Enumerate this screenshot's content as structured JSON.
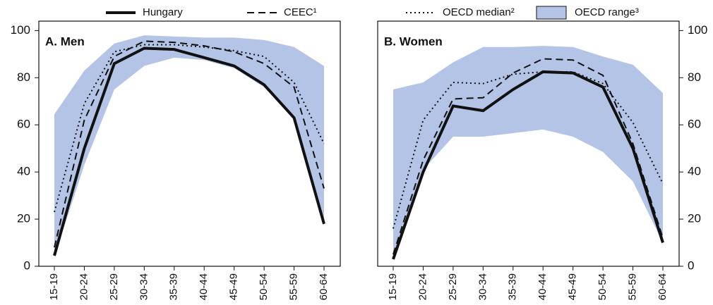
{
  "chart_data": [
    {
      "type": "line",
      "panel_label": "A. Men",
      "yaxis_side": "left",
      "categories": [
        "15-19",
        "20-24",
        "25-29",
        "30-34",
        "35-39",
        "40-44",
        "45-49",
        "50-54",
        "55-59",
        "60-64"
      ],
      "ylim": [
        0,
        104
      ],
      "yticks": [
        0,
        20,
        40,
        60,
        80,
        100
      ],
      "range": {
        "name": "OECD range³",
        "color": "#b3c4e6",
        "low": [
          4,
          43,
          75,
          85,
          88.5,
          87.5,
          84,
          76,
          62,
          17
        ],
        "high": [
          64.5,
          83,
          94.5,
          98,
          97.5,
          97,
          97,
          96,
          93,
          85
        ]
      },
      "series": [
        {
          "name": "Hungary",
          "color": "#111111",
          "dash": "solid",
          "values": [
            4.5,
            50,
            86,
            92.5,
            92,
            88.5,
            85,
            77,
            63,
            18
          ]
        },
        {
          "name": "CEEC¹",
          "color": "#111111",
          "dash": "dashed",
          "values": [
            8,
            62,
            89,
            95.5,
            95,
            93.5,
            91,
            86,
            76,
            33
          ]
        },
        {
          "name": "OECD median²",
          "color": "#111111",
          "dash": "dotted",
          "values": [
            23,
            69,
            91,
            94,
            94,
            93,
            91.5,
            89,
            78,
            52
          ]
        }
      ]
    },
    {
      "type": "line",
      "panel_label": "B. Women",
      "yaxis_side": "right",
      "categories": [
        "15-19",
        "20-24",
        "25-29",
        "30-34",
        "35-39",
        "40-44",
        "45-49",
        "50-54",
        "55-59",
        "60-64"
      ],
      "ylim": [
        0,
        104
      ],
      "yticks": [
        0,
        20,
        40,
        60,
        80,
        100
      ],
      "range": {
        "name": "OECD range³",
        "color": "#b3c4e6",
        "low": [
          3,
          41,
          55,
          55,
          56.5,
          58,
          55,
          48.5,
          36,
          10
        ],
        "high": [
          75,
          78,
          86.5,
          93,
          93,
          93.5,
          93,
          89,
          85.5,
          73.5
        ]
      },
      "series": [
        {
          "name": "Hungary",
          "color": "#111111",
          "dash": "solid",
          "values": [
            3,
            40,
            68,
            66,
            75,
            82.5,
            82,
            76,
            50,
            10
          ]
        },
        {
          "name": "CEEC¹",
          "color": "#111111",
          "dash": "dashed",
          "values": [
            5,
            45,
            71,
            71.5,
            82,
            88,
            87.5,
            81,
            52,
            12
          ]
        },
        {
          "name": "OECD median²",
          "color": "#111111",
          "dash": "dotted",
          "values": [
            16,
            62,
            78,
            77.5,
            81.5,
            82.5,
            82.5,
            77.5,
            61,
            35
          ]
        }
      ]
    }
  ]
}
